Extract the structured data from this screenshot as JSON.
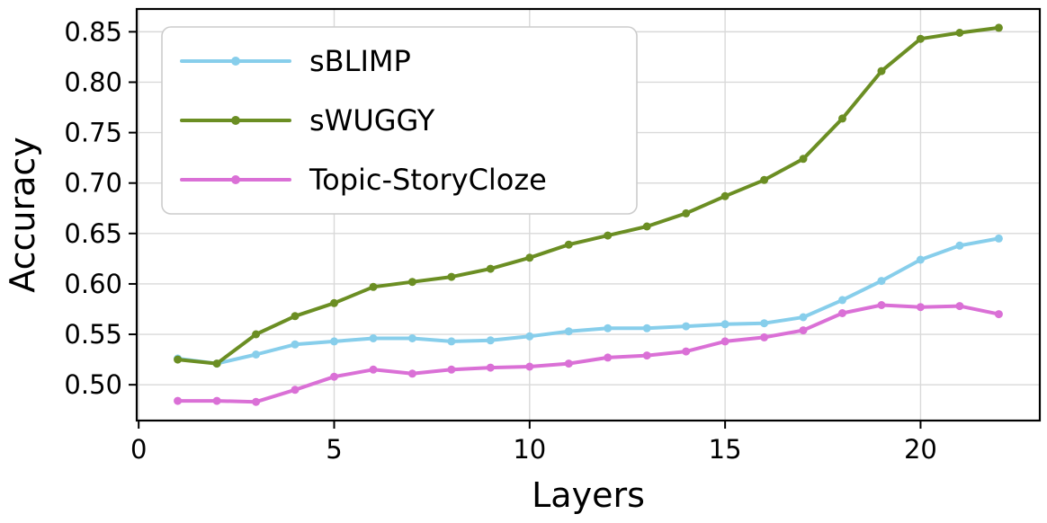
{
  "chart_data": {
    "type": "line",
    "title": "",
    "xlabel": "Layers",
    "ylabel": "Accuracy",
    "grid": true,
    "legend_position": "upper left",
    "xlim": [
      -0.05,
      23.05
    ],
    "ylim": [
      0.4645,
      0.8726
    ],
    "xticks": [
      0,
      5,
      10,
      15,
      20
    ],
    "yticks": [
      0.5,
      0.55,
      0.6,
      0.65,
      0.7,
      0.75,
      0.8,
      0.85
    ],
    "x": [
      1,
      2,
      3,
      4,
      5,
      6,
      7,
      8,
      9,
      10,
      11,
      12,
      13,
      14,
      15,
      16,
      17,
      18,
      19,
      20,
      21,
      22
    ],
    "series": [
      {
        "name": "sBLIMP",
        "color": "#87CEEB",
        "values": [
          0.526,
          0.521,
          0.53,
          0.54,
          0.543,
          0.546,
          0.546,
          0.543,
          0.544,
          0.548,
          0.553,
          0.556,
          0.556,
          0.558,
          0.56,
          0.561,
          0.567,
          0.584,
          0.603,
          0.624,
          0.638,
          0.645
        ]
      },
      {
        "name": "sWUGGY",
        "color": "#6B8E23",
        "values": [
          0.525,
          0.521,
          0.55,
          0.568,
          0.581,
          0.597,
          0.602,
          0.607,
          0.615,
          0.626,
          0.639,
          0.648,
          0.657,
          0.67,
          0.687,
          0.703,
          0.724,
          0.764,
          0.811,
          0.843,
          0.849,
          0.854
        ]
      },
      {
        "name": "Topic-StoryCloze",
        "color": "#DA70D6",
        "values": [
          0.484,
          0.484,
          0.483,
          0.495,
          0.508,
          0.515,
          0.511,
          0.515,
          0.517,
          0.518,
          0.521,
          0.527,
          0.529,
          0.533,
          0.543,
          0.547,
          0.554,
          0.571,
          0.579,
          0.577,
          0.578,
          0.57
        ]
      }
    ],
    "style": {
      "grid_color": "#d9d9d9",
      "spine_color": "#000000",
      "legend_border_color": "#cccccc",
      "line_width": 4,
      "marker_radius": 4.5
    }
  }
}
